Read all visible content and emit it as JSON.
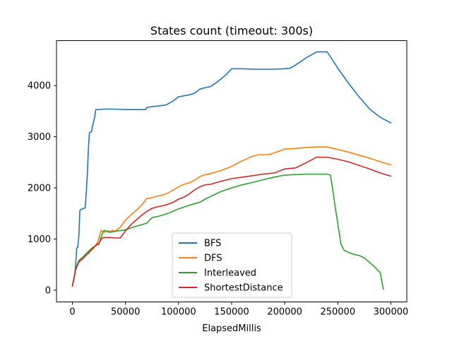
{
  "chart_data": {
    "type": "line",
    "title": "States count (timeout: 300s)",
    "xlabel": "ElapsedMillis",
    "ylabel": "",
    "xlim": [
      -15000,
      315000
    ],
    "ylim": [
      -230,
      4880
    ],
    "grid": false,
    "legend_position": "lower-center",
    "x_ticks": [
      0,
      50000,
      100000,
      150000,
      200000,
      250000,
      300000
    ],
    "x_tick_labels": [
      "0",
      "50000",
      "100000",
      "150000",
      "200000",
      "250000",
      "300000"
    ],
    "y_ticks": [
      0,
      1000,
      2000,
      3000,
      4000
    ],
    "y_tick_labels": [
      "0",
      "1000",
      "2000",
      "3000",
      "4000"
    ],
    "series": [
      {
        "name": "BFS",
        "color": "#1f77b4",
        "x": [
          0,
          2000,
          3000,
          4000,
          5000,
          6000,
          7000,
          8000,
          9000,
          10000,
          11000,
          12000,
          13000,
          14000,
          15000,
          16000,
          17000,
          18000,
          19000,
          20000,
          21000,
          22000,
          23000,
          24000,
          25000,
          30000,
          40000,
          50000,
          60000,
          69000,
          70000,
          72000,
          80000,
          88000,
          95000,
          100000,
          105000,
          110000,
          115000,
          120000,
          125000,
          130000,
          135000,
          140000,
          145000,
          150000,
          155000,
          160000,
          170000,
          180000,
          190000,
          200000,
          205000,
          210000,
          215000,
          220000,
          225000,
          230000,
          235000,
          240000,
          245000,
          250000,
          260000,
          270000,
          280000,
          290000,
          300000
        ],
        "y": [
          80,
          280,
          500,
          820,
          840,
          1050,
          1560,
          1580,
          1580,
          1600,
          1600,
          1610,
          1900,
          2250,
          2750,
          3080,
          3090,
          3100,
          3220,
          3300,
          3380,
          3530,
          3530,
          3530,
          3530,
          3540,
          3540,
          3530,
          3530,
          3530,
          3570,
          3580,
          3600,
          3620,
          3700,
          3780,
          3800,
          3820,
          3850,
          3930,
          3960,
          3980,
          4050,
          4130,
          4220,
          4330,
          4330,
          4330,
          4320,
          4320,
          4320,
          4330,
          4340,
          4400,
          4470,
          4540,
          4600,
          4660,
          4660,
          4660,
          4500,
          4340,
          4050,
          3780,
          3540,
          3380,
          3270
        ]
      },
      {
        "name": "DFS",
        "color": "#ff7f0e",
        "x": [
          0,
          3000,
          6000,
          10000,
          15000,
          20000,
          24000,
          27000,
          30000,
          33000,
          36000,
          38000,
          40000,
          45000,
          50000,
          55000,
          60000,
          65000,
          70000,
          75000,
          80000,
          85000,
          90000,
          95000,
          100000,
          105000,
          110000,
          115000,
          120000,
          125000,
          130000,
          135000,
          140000,
          150000,
          160000,
          170000,
          175000,
          185000,
          195000,
          200000,
          210000,
          220000,
          230000,
          240000,
          250000,
          260000,
          270000,
          280000,
          290000,
          300000
        ],
        "y": [
          80,
          400,
          550,
          620,
          730,
          820,
          950,
          1170,
          1130,
          1160,
          1150,
          1170,
          1150,
          1230,
          1370,
          1470,
          1560,
          1660,
          1790,
          1810,
          1840,
          1860,
          1900,
          1960,
          2020,
          2070,
          2100,
          2150,
          2220,
          2260,
          2280,
          2310,
          2340,
          2420,
          2530,
          2620,
          2650,
          2650,
          2720,
          2760,
          2770,
          2790,
          2800,
          2800,
          2750,
          2700,
          2640,
          2580,
          2510,
          2450
        ]
      },
      {
        "name": "Interleaved",
        "color": "#2ca02c",
        "x": [
          0,
          3000,
          6000,
          10000,
          15000,
          20000,
          25000,
          28000,
          30000,
          35000,
          40000,
          50000,
          60000,
          70000,
          75000,
          80000,
          90000,
          100000,
          110000,
          120000,
          125000,
          130000,
          140000,
          150000,
          160000,
          170000,
          180000,
          190000,
          200000,
          210000,
          220000,
          230000,
          240000,
          243000,
          245000,
          247000,
          250000,
          253000,
          256000,
          260000,
          265000,
          270000,
          275000,
          280000,
          285000,
          290000,
          292000,
          293000
        ],
        "y": [
          80,
          420,
          580,
          650,
          760,
          850,
          900,
          1100,
          1170,
          1130,
          1150,
          1180,
          1250,
          1310,
          1420,
          1440,
          1500,
          1590,
          1660,
          1720,
          1780,
          1830,
          1930,
          2000,
          2060,
          2110,
          2160,
          2210,
          2250,
          2260,
          2270,
          2270,
          2270,
          2250,
          2000,
          1700,
          1300,
          900,
          780,
          740,
          700,
          680,
          630,
          540,
          450,
          340,
          120,
          20
        ]
      },
      {
        "name": "ShortestDistance",
        "color": "#d62728",
        "x": [
          0,
          3000,
          6000,
          10000,
          15000,
          20000,
          25000,
          28000,
          30000,
          35000,
          40000,
          45000,
          50000,
          55000,
          60000,
          65000,
          70000,
          75000,
          80000,
          85000,
          90000,
          95000,
          100000,
          105000,
          110000,
          115000,
          120000,
          125000,
          130000,
          140000,
          150000,
          160000,
          170000,
          180000,
          190000,
          200000,
          210000,
          220000,
          230000,
          240000,
          250000,
          260000,
          270000,
          280000,
          290000,
          300000
        ],
        "y": [
          80,
          400,
          550,
          630,
          720,
          840,
          920,
          1020,
          1030,
          1030,
          1020,
          1020,
          1160,
          1280,
          1370,
          1460,
          1540,
          1600,
          1630,
          1650,
          1680,
          1720,
          1780,
          1820,
          1880,
          1960,
          2020,
          2060,
          2070,
          2130,
          2180,
          2210,
          2240,
          2270,
          2290,
          2370,
          2390,
          2490,
          2600,
          2600,
          2560,
          2510,
          2440,
          2370,
          2290,
          2230
        ]
      }
    ]
  }
}
